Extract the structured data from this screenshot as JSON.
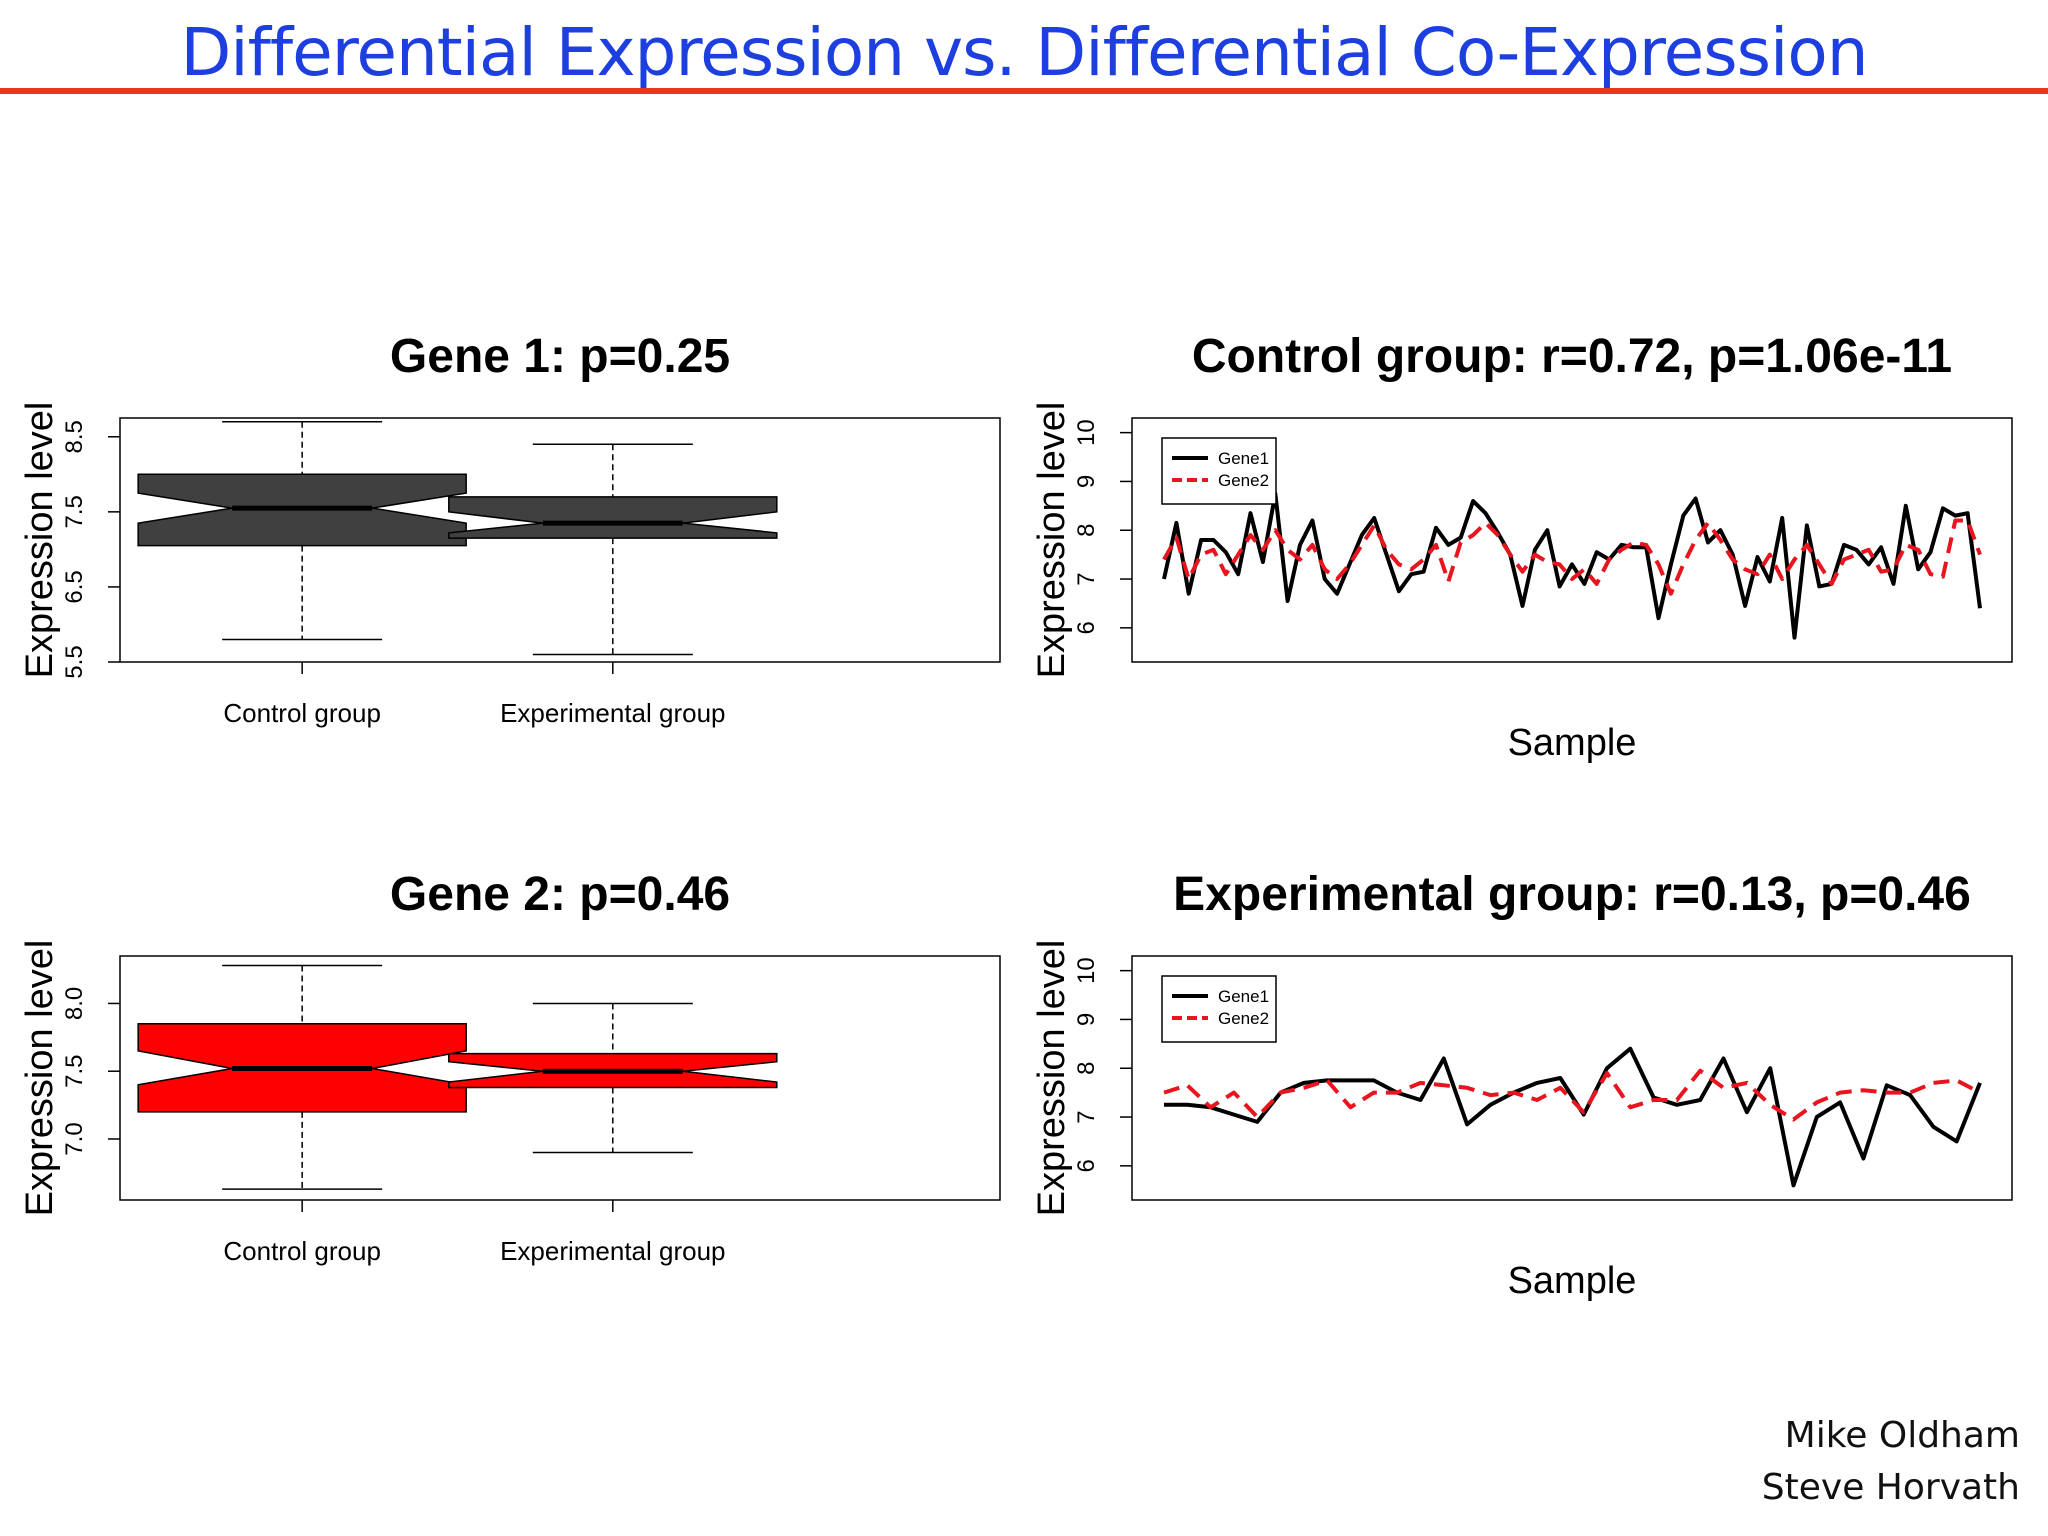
{
  "slide": {
    "title": "Differential Expression vs. Differential Co-Expression",
    "authors": [
      "Mike Oldham",
      "Steve Horvath"
    ]
  },
  "colors": {
    "title": "#1e3fe0",
    "rule": "#ee3322",
    "gene1_box": "#404040",
    "gene2_box": "#ff0000",
    "gene1_line": "#000000",
    "gene2_line": "#e8141e"
  },
  "chart_data": [
    {
      "id": "gene1-box",
      "type": "box",
      "title": "Gene 1: p=0.25",
      "ylabel": "Expression level",
      "xlabel": "",
      "yticks": [
        "5.5",
        "6.5",
        "7.5",
        "8.5"
      ],
      "ylim": [
        5.5,
        8.75
      ],
      "notched": true,
      "fill": "#404040",
      "categories": [
        "Control group",
        "Experimental group"
      ],
      "boxes": [
        {
          "whisker_low": 5.8,
          "q1": 7.05,
          "median": 7.55,
          "q3": 8.0,
          "whisker_high": 8.7,
          "notch_low": 7.35,
          "notch_high": 7.75
        },
        {
          "whisker_low": 5.6,
          "q1": 7.15,
          "median": 7.35,
          "q3": 7.7,
          "whisker_high": 8.4,
          "notch_low": 7.22,
          "notch_high": 7.5
        }
      ]
    },
    {
      "id": "control-lines",
      "type": "line",
      "title": "Control group: r=0.72, p=1.06e-11",
      "ylabel": "Expression level",
      "xlabel": "Sample",
      "yticks": [
        "6",
        "7",
        "8",
        "9",
        "10"
      ],
      "ylim": [
        5.3,
        10.3
      ],
      "legend": {
        "position": "top-left",
        "entries": [
          "Gene1",
          "Gene2"
        ]
      },
      "series": [
        {
          "name": "Gene1",
          "style": "solid",
          "color": "#000000",
          "values": [
            7.0,
            8.15,
            6.7,
            7.8,
            7.8,
            7.55,
            7.1,
            8.35,
            7.35,
            8.75,
            6.55,
            7.7,
            8.2,
            7.0,
            6.7,
            7.3,
            7.9,
            8.25,
            7.5,
            6.75,
            7.1,
            7.15,
            8.05,
            7.7,
            7.85,
            8.6,
            8.35,
            7.95,
            7.5,
            6.45,
            7.6,
            8.0,
            6.85,
            7.3,
            6.9,
            7.55,
            7.4,
            7.7,
            7.65,
            7.65,
            6.2,
            7.3,
            8.3,
            8.65,
            7.75,
            8.0,
            7.5,
            6.45,
            7.45,
            6.95,
            8.25,
            5.8,
            8.1,
            6.85,
            6.9,
            7.7,
            7.6,
            7.3,
            7.65,
            6.9,
            8.5,
            7.2,
            7.55,
            8.45,
            8.3,
            8.35,
            6.4
          ]
        },
        {
          "name": "Gene2",
          "style": "dashed",
          "color": "#e8141e",
          "values": [
            7.4,
            7.85,
            7.0,
            7.5,
            7.6,
            7.1,
            7.5,
            7.9,
            7.6,
            8.0,
            7.6,
            7.4,
            7.7,
            7.2,
            7.0,
            7.3,
            7.7,
            8.1,
            7.6,
            7.3,
            7.2,
            7.4,
            7.7,
            6.95,
            7.75,
            7.9,
            8.15,
            7.9,
            7.5,
            7.15,
            7.5,
            7.35,
            7.3,
            7.0,
            7.2,
            6.9,
            7.4,
            7.6,
            7.75,
            7.7,
            7.3,
            6.7,
            7.3,
            7.8,
            8.15,
            7.8,
            7.4,
            7.2,
            7.1,
            7.5,
            7.0,
            7.4,
            7.7,
            7.3,
            6.9,
            7.4,
            7.5,
            7.6,
            7.15,
            7.2,
            7.7,
            7.6,
            7.1,
            7.05,
            8.2,
            8.2,
            7.5
          ]
        }
      ]
    },
    {
      "id": "gene2-box",
      "type": "box",
      "title": "Gene 2: p=0.46",
      "ylabel": "Expression level",
      "xlabel": "",
      "yticks": [
        "7.0",
        "7.5",
        "8.0"
      ],
      "ylim": [
        6.55,
        8.35
      ],
      "notched": true,
      "fill": "#ff0000",
      "categories": [
        "Control group",
        "Experimental group"
      ],
      "boxes": [
        {
          "whisker_low": 6.63,
          "q1": 7.2,
          "median": 7.52,
          "q3": 7.85,
          "whisker_high": 8.28,
          "notch_low": 7.4,
          "notch_high": 7.65
        },
        {
          "whisker_low": 6.9,
          "q1": 7.38,
          "median": 7.5,
          "q3": 7.63,
          "whisker_high": 8.0,
          "notch_low": 7.42,
          "notch_high": 7.57
        }
      ]
    },
    {
      "id": "experimental-lines",
      "type": "line",
      "title": "Experimental group: r=0.13, p=0.46",
      "ylabel": "Expression level",
      "xlabel": "Sample",
      "yticks": [
        "6",
        "7",
        "8",
        "9",
        "10"
      ],
      "ylim": [
        5.3,
        10.3
      ],
      "legend": {
        "position": "top-left",
        "entries": [
          "Gene1",
          "Gene2"
        ]
      },
      "series": [
        {
          "name": "Gene1",
          "style": "solid",
          "color": "#000000",
          "values": [
            7.25,
            7.25,
            7.2,
            7.05,
            6.9,
            7.5,
            7.7,
            7.75,
            7.75,
            7.75,
            7.5,
            7.35,
            8.2,
            6.85,
            7.25,
            7.5,
            7.7,
            7.8,
            7.05,
            8.0,
            8.4,
            7.4,
            7.25,
            7.35,
            8.2,
            7.1,
            8.0,
            5.6,
            7.0,
            7.3,
            6.15,
            7.65,
            7.45,
            6.8,
            6.5,
            7.7
          ]
        },
        {
          "name": "Gene2",
          "style": "dashed",
          "color": "#e8141e",
          "values": [
            7.5,
            7.65,
            7.2,
            7.5,
            7.0,
            7.5,
            7.6,
            7.75,
            7.2,
            7.5,
            7.5,
            7.7,
            7.65,
            7.6,
            7.45,
            7.5,
            7.35,
            7.6,
            7.1,
            7.9,
            7.2,
            7.35,
            7.35,
            7.95,
            7.6,
            7.7,
            7.25,
            6.95,
            7.3,
            7.5,
            7.55,
            7.5,
            7.5,
            7.7,
            7.75,
            7.5
          ]
        }
      ]
    }
  ]
}
